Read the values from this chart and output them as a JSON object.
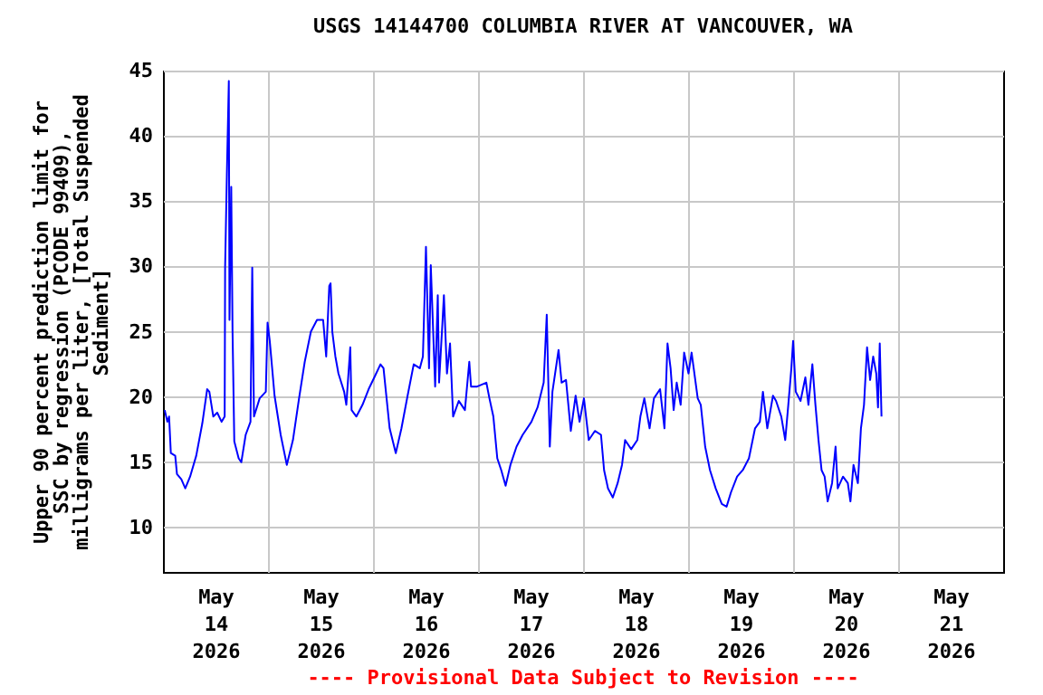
{
  "chart_data": {
    "type": "line",
    "title": "USGS 14144700 COLUMBIA RIVER AT VANCOUVER, WA",
    "ylabel": "Upper 90 percent prediction limit for SSC by regression (PCODE 99409), milligrams per liter, [Total Suspended Sediment]",
    "annotations": [
      "---- Provisional Data Subject to Revision ----"
    ],
    "xlim": [
      "2026-05-14T00:00",
      "2026-05-22T00:00"
    ],
    "xticks": [
      {
        "value": "2026-05-14T12:00",
        "label": "May 14 2026"
      },
      {
        "value": "2026-05-15T12:00",
        "label": "May 15 2026"
      },
      {
        "value": "2026-05-16T12:00",
        "label": "May 16 2026"
      },
      {
        "value": "2026-05-17T12:00",
        "label": "May 17 2026"
      },
      {
        "value": "2026-05-18T12:00",
        "label": "May 18 2026"
      },
      {
        "value": "2026-05-19T12:00",
        "label": "May 19 2026"
      },
      {
        "value": "2026-05-20T12:00",
        "label": "May 20 2026"
      },
      {
        "value": "2026-05-21T12:00",
        "label": "May 21 2026"
      },
      {
        "value": "2026-05-15T00:00",
        "label": null
      },
      {
        "value": "2026-05-16T00:00",
        "label": null
      },
      {
        "value": "2026-05-17T00:00",
        "label": null
      },
      {
        "value": "2026-05-18T00:00",
        "label": null
      },
      {
        "value": "2026-05-19T00:00",
        "label": null
      },
      {
        "value": "2026-05-20T00:00",
        "label": null
      },
      {
        "value": "2026-05-21T00:00",
        "label": null
      }
    ],
    "ylim": [
      6.6,
      45
    ],
    "yticks": [
      10,
      15,
      20,
      25,
      30,
      35,
      40,
      45
    ],
    "grid": true,
    "marker": "none",
    "line_style": "solid",
    "series": [
      {
        "color": "#0000ff",
        "x": [
          "2026-05-14T00:24",
          "2026-05-14T01:00",
          "2026-05-14T01:24",
          "2026-05-14T01:48",
          "2026-05-14T02:48",
          "2026-05-14T03:12",
          "2026-05-14T04:12",
          "2026-05-14T05:06",
          "2026-05-14T06:12",
          "2026-05-14T07:36",
          "2026-05-14T09:00",
          "2026-05-14T10:06",
          "2026-05-14T10:36",
          "2026-05-14T11:30",
          "2026-05-14T12:24",
          "2026-05-14T13:24",
          "2026-05-14T14:06",
          "2026-05-14T14:12",
          "2026-05-14T14:36",
          "2026-05-14T15:03",
          "2026-05-14T15:12",
          "2026-05-14T15:36",
          "2026-05-14T15:54",
          "2026-05-14T16:18",
          "2026-05-14T17:18",
          "2026-05-14T17:54",
          "2026-05-14T18:54",
          "2026-05-14T20:00",
          "2026-05-14T20:24",
          "2026-05-14T20:48",
          "2026-05-14T22:06",
          "2026-05-14T23:30",
          "2026-05-14T23:54",
          "2026-05-15T00:24",
          "2026-05-15T01:30",
          "2026-05-15T02:54",
          "2026-05-15T04:18",
          "2026-05-15T05:42",
          "2026-05-15T07:06",
          "2026-05-15T08:24",
          "2026-05-15T09:48",
          "2026-05-15T11:12",
          "2026-05-15T12:36",
          "2026-05-15T13:18",
          "2026-05-15T14:00",
          "2026-05-15T14:18",
          "2026-05-15T14:42",
          "2026-05-15T15:24",
          "2026-05-15T16:06",
          "2026-05-15T17:24",
          "2026-05-15T17:54",
          "2026-05-15T18:48",
          "2026-05-15T19:06",
          "2026-05-15T20:12",
          "2026-05-15T21:36",
          "2026-05-15T23:00",
          "2026-05-16T00:18",
          "2026-05-16T01:42",
          "2026-05-16T02:24",
          "2026-05-16T03:06",
          "2026-05-16T03:48",
          "2026-05-16T05:12",
          "2026-05-16T06:30",
          "2026-05-16T07:54",
          "2026-05-16T09:18",
          "2026-05-16T10:42",
          "2026-05-16T11:24",
          "2026-05-16T12:06",
          "2026-05-16T12:48",
          "2026-05-16T13:12",
          "2026-05-16T14:12",
          "2026-05-16T14:48",
          "2026-05-16T15:06",
          "2026-05-16T15:54",
          "2026-05-16T16:12",
          "2026-05-16T16:54",
          "2026-05-16T17:36",
          "2026-05-16T18:18",
          "2026-05-16T19:36",
          "2026-05-16T21:00",
          "2026-05-16T22:00",
          "2026-05-16T22:24",
          "2026-05-16T23:48",
          "2026-05-17T01:54",
          "2026-05-17T02:36",
          "2026-05-17T03:30",
          "2026-05-17T04:24",
          "2026-05-17T05:18",
          "2026-05-17T06:18",
          "2026-05-17T07:24",
          "2026-05-17T08:48",
          "2026-05-17T10:12",
          "2026-05-17T12:12",
          "2026-05-17T13:36",
          "2026-05-17T15:00",
          "2026-05-17T15:42",
          "2026-05-17T16:24",
          "2026-05-17T17:00",
          "2026-05-17T18:24",
          "2026-05-17T19:06",
          "2026-05-17T20:06",
          "2026-05-17T21:12",
          "2026-05-17T22:18",
          "2026-05-17T23:12",
          "2026-05-18T00:12",
          "2026-05-18T01:18",
          "2026-05-18T02:42",
          "2026-05-18T04:06",
          "2026-05-18T04:48",
          "2026-05-18T05:42",
          "2026-05-18T06:48",
          "2026-05-18T07:54",
          "2026-05-18T08:54",
          "2026-05-18T09:36",
          "2026-05-18T11:00",
          "2026-05-18T12:24",
          "2026-05-18T13:06",
          "2026-05-18T14:00",
          "2026-05-18T15:12",
          "2026-05-18T16:12",
          "2026-05-18T17:36",
          "2026-05-18T18:36",
          "2026-05-18T19:18",
          "2026-05-18T20:00",
          "2026-05-18T20:42",
          "2026-05-18T21:24",
          "2026-05-18T22:18",
          "2026-05-18T23:06",
          "2026-05-19T00:06",
          "2026-05-19T00:48",
          "2026-05-19T02:12",
          "2026-05-19T02:54",
          "2026-05-19T03:54",
          "2026-05-19T05:00",
          "2026-05-19T06:18",
          "2026-05-19T07:42",
          "2026-05-19T08:48",
          "2026-05-19T09:48",
          "2026-05-19T11:12",
          "2026-05-19T12:30",
          "2026-05-19T13:54",
          "2026-05-19T15:18",
          "2026-05-19T16:24",
          "2026-05-19T17:06",
          "2026-05-19T18:06",
          "2026-05-19T19:24",
          "2026-05-19T20:06",
          "2026-05-19T21:18",
          "2026-05-19T22:12",
          "2026-05-19T22:54",
          "2026-05-19T23:36",
          "2026-05-20T00:00",
          "2026-05-20T00:36",
          "2026-05-20T01:42",
          "2026-05-20T02:48",
          "2026-05-20T03:30",
          "2026-05-20T04:24",
          "2026-05-20T05:06",
          "2026-05-20T05:48",
          "2026-05-20T06:30",
          "2026-05-20T07:12",
          "2026-05-20T07:54",
          "2026-05-20T08:54",
          "2026-05-20T09:42",
          "2026-05-20T10:12",
          "2026-05-20T11:24",
          "2026-05-20T12:30",
          "2026-05-20T13:06",
          "2026-05-20T13:48",
          "2026-05-20T14:48",
          "2026-05-20T15:30",
          "2026-05-20T16:12",
          "2026-05-20T16:54",
          "2026-05-20T17:36",
          "2026-05-20T18:18",
          "2026-05-20T19:00",
          "2026-05-20T19:24",
          "2026-05-20T19:48",
          "2026-05-20T20:12"
        ],
        "values": [
          19.0,
          18.1,
          18.5,
          15.7,
          15.5,
          14.1,
          13.7,
          13.0,
          13.9,
          15.5,
          18.0,
          20.6,
          20.4,
          18.5,
          18.8,
          18.1,
          18.5,
          29.9,
          37.0,
          44.2,
          25.9,
          36.1,
          25.0,
          16.6,
          15.3,
          15.0,
          17.1,
          18.1,
          29.9,
          18.5,
          19.9,
          20.4,
          25.7,
          24.3,
          20.1,
          17.1,
          14.8,
          16.7,
          19.9,
          22.7,
          25.0,
          25.9,
          25.9,
          23.1,
          28.5,
          28.7,
          25.0,
          23.1,
          21.8,
          20.4,
          19.4,
          23.8,
          19.0,
          18.5,
          19.4,
          20.6,
          21.5,
          22.5,
          22.2,
          19.9,
          17.6,
          15.7,
          17.6,
          20.1,
          22.5,
          22.2,
          23.1,
          31.5,
          22.2,
          30.1,
          20.8,
          27.8,
          21.1,
          25.9,
          27.8,
          21.8,
          24.1,
          18.5,
          19.7,
          19.0,
          22.7,
          20.8,
          20.8,
          21.1,
          19.9,
          18.5,
          15.3,
          14.4,
          13.2,
          14.8,
          16.2,
          17.1,
          18.1,
          19.2,
          21.1,
          26.3,
          16.2,
          20.4,
          23.6,
          21.1,
          21.3,
          17.4,
          20.1,
          18.1,
          19.9,
          16.7,
          17.4,
          17.1,
          14.4,
          13.0,
          12.3,
          13.4,
          14.8,
          16.7,
          16.0,
          16.7,
          18.5,
          19.9,
          17.6,
          19.9,
          20.6,
          17.6,
          24.1,
          22.2,
          19.0,
          21.1,
          19.4,
          23.4,
          21.8,
          23.4,
          19.9,
          19.4,
          16.2,
          14.4,
          13.0,
          11.8,
          11.6,
          12.7,
          13.9,
          14.4,
          15.3,
          17.6,
          18.1,
          20.4,
          17.6,
          20.1,
          19.7,
          18.5,
          16.7,
          19.4,
          22.2,
          24.3,
          20.4,
          19.7,
          21.5,
          19.4,
          22.5,
          19.4,
          16.7,
          14.4,
          13.9,
          12.0,
          13.4,
          16.2,
          13.0,
          13.9,
          13.4,
          12.0,
          14.8,
          13.4,
          17.6,
          19.4,
          23.8,
          21.3,
          23.1,
          21.8,
          19.2,
          24.1,
          18.5
        ]
      }
    ]
  }
}
